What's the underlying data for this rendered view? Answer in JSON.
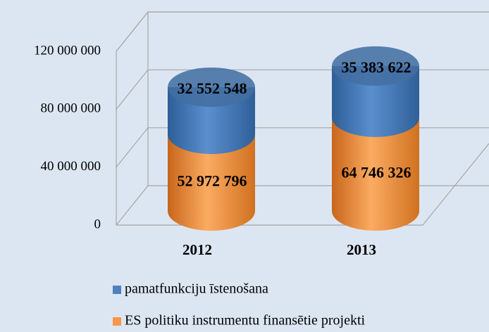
{
  "chart_data": {
    "type": "bar3d-stacked-cylinder",
    "categories": [
      "2012",
      "2013"
    ],
    "series": [
      {
        "name": "ES politiku instrumentu finansētie projekti",
        "color": "#f79646",
        "values": [
          52972796,
          64746326
        ],
        "value_labels": [
          "52 972 796",
          "64 746 326"
        ]
      },
      {
        "name": "pamatfunkciju īstenošana",
        "color": "#4f81bd",
        "values": [
          32552548,
          35383622
        ],
        "value_labels": [
          "32 552 548",
          "35 383 622"
        ]
      }
    ],
    "ylim": [
      0,
      120000000
    ],
    "yticks": [
      0,
      {
        "value": 40000000,
        "label": "40 000 000"
      },
      {
        "value": 80000000,
        "label": "80 000 000"
      },
      {
        "value": 120000000,
        "label": "120 000 000"
      }
    ],
    "grid": true
  }
}
